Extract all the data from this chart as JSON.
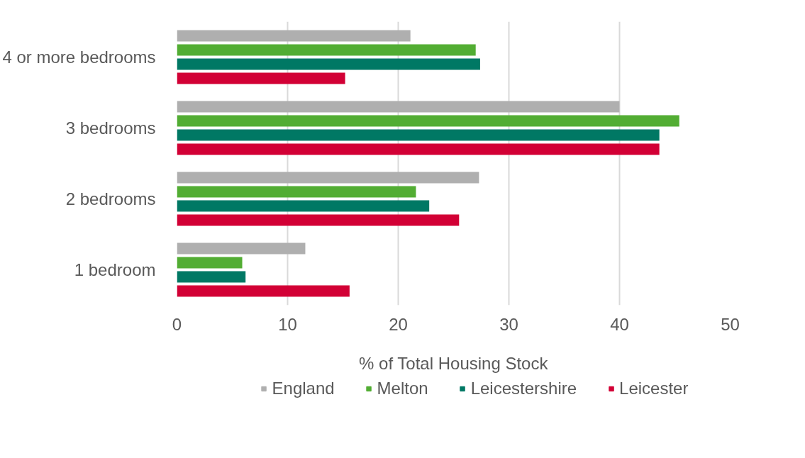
{
  "chart_data": {
    "type": "bar",
    "orientation": "horizontal",
    "xlabel": "% of Total Housing Stock",
    "categories": [
      "4 or more bedrooms",
      "3 bedrooms",
      "2 bedrooms",
      "1 bedroom"
    ],
    "series": [
      {
        "name": "England",
        "color": "#afafaf",
        "values": [
          21.1,
          40.0,
          27.3,
          11.6
        ]
      },
      {
        "name": "Melton",
        "color": "#52ad33",
        "values": [
          27.0,
          45.4,
          21.6,
          5.9
        ]
      },
      {
        "name": "Leicestershire",
        "color": "#007864",
        "values": [
          27.4,
          43.6,
          22.8,
          6.2
        ]
      },
      {
        "name": "Leicester",
        "color": "#d20035",
        "values": [
          15.2,
          43.6,
          25.5,
          15.6
        ]
      }
    ],
    "xlim": [
      0,
      50
    ],
    "xticks": [
      0,
      10,
      20,
      30,
      40,
      50
    ],
    "grid": "x",
    "legend": "bottom"
  }
}
